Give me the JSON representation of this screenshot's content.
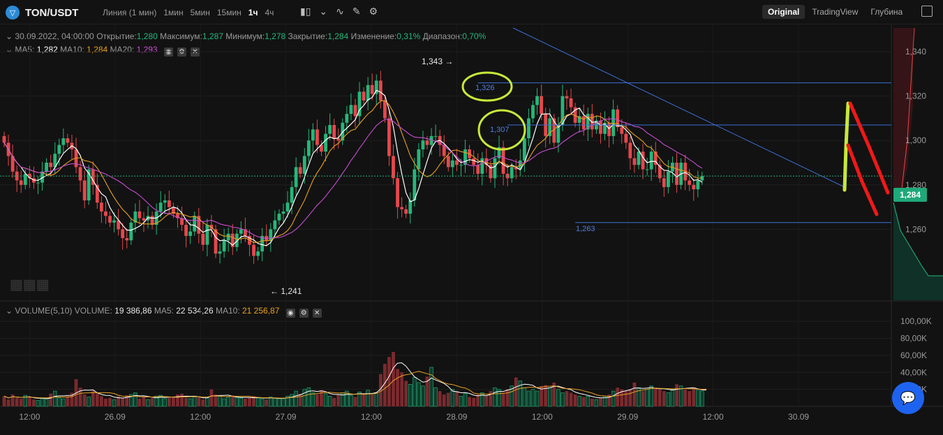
{
  "header": {
    "pair": "TON/USDT",
    "intervals": [
      "Линия (1 мин)",
      "1мин",
      "5мин",
      "15мин",
      "1ч",
      "4ч"
    ],
    "active_interval": "1ч",
    "views": [
      "Original",
      "TradingView",
      "Глубина"
    ],
    "active_view": "Original"
  },
  "ohlc": {
    "date": "30.09.2022, 04:00:00",
    "open_label": "Открытие:",
    "open": "1,280",
    "high_label": "Максимум:",
    "high": "1,287",
    "low_label": "Минимум:",
    "low": "1,278",
    "close_label": "Закрытие:",
    "close": "1,284",
    "change_label": "Изменение:",
    "change": "0,31%",
    "range_label": "Диапазон:",
    "range": "0,70%"
  },
  "ma": {
    "ma5_label": "MA5:",
    "ma5": "1,282",
    "ma10_label": "MA10:",
    "ma10": "1,284",
    "ma20_label": "MA20:",
    "ma20": "1,293"
  },
  "volume": {
    "label": "VOLUME(5,10)",
    "vol_label": "VOLUME:",
    "vol": "19 386,86",
    "ma5_label": "MA5:",
    "ma5": "22 534,26",
    "ma10_label": "MA10:",
    "ma10": "21 256,87"
  },
  "price_tag": "1,284",
  "colors": {
    "up": "#25b77a",
    "down": "#e5484d",
    "ma5": "#ffffff",
    "ma10": "#e8a021",
    "ma20": "#c84dd1",
    "hline": "#3b6fd6",
    "circle": "#c7e83a"
  },
  "chart_data": {
    "type": "candlestick",
    "price_axis_ticks": [
      "1,340",
      "1,320",
      "1,300",
      "1,280",
      "1,260"
    ],
    "volume_axis_ticks": [
      "100,00K",
      "80,00K",
      "60,00K",
      "40,00K",
      "20,00K"
    ],
    "x_ticks": [
      "12:00",
      "26.09",
      "12:00",
      "27.09",
      "12:00",
      "28.09",
      "12:00",
      "29.09",
      "12:00",
      "30.09"
    ],
    "ylim": [
      1.228,
      1.352
    ],
    "vol_ylim": [
      0,
      110000
    ],
    "annotations": {
      "high_label": "1,343",
      "low_label": "1,241",
      "level_1326": "1,326",
      "level_1307": "1,307",
      "level_1263": "1,263"
    },
    "hlines": [
      1.326,
      1.307,
      1.263
    ],
    "current_price": 1.284,
    "closes": [
      1.299,
      1.293,
      1.286,
      1.282,
      1.28,
      1.285,
      1.283,
      1.281,
      1.281,
      1.286,
      1.29,
      1.288,
      1.294,
      1.298,
      1.301,
      1.299,
      1.296,
      1.288,
      1.282,
      1.273,
      1.287,
      1.28,
      1.272,
      1.268,
      1.266,
      1.263,
      1.264,
      1.26,
      1.256,
      1.255,
      1.263,
      1.268,
      1.265,
      1.264,
      1.266,
      1.262,
      1.268,
      1.272,
      1.273,
      1.27,
      1.267,
      1.265,
      1.262,
      1.257,
      1.259,
      1.266,
      1.258,
      1.253,
      1.262,
      1.26,
      1.249,
      1.25,
      1.255,
      1.258,
      1.252,
      1.258,
      1.26,
      1.257,
      1.253,
      1.248,
      1.25,
      1.257,
      1.255,
      1.26,
      1.264,
      1.267,
      1.268,
      1.272,
      1.279,
      1.288,
      1.285,
      1.293,
      1.3,
      1.305,
      1.298,
      1.295,
      1.303,
      1.307,
      1.301,
      1.3,
      1.308,
      1.312,
      1.316,
      1.311,
      1.322,
      1.318,
      1.325,
      1.321,
      1.327,
      1.318,
      1.31,
      1.293,
      1.283,
      1.27,
      1.269,
      1.267,
      1.273,
      1.287,
      1.296,
      1.3,
      1.298,
      1.302,
      1.302,
      1.298,
      1.293,
      1.288,
      1.291,
      1.289,
      1.289,
      1.296,
      1.292,
      1.289,
      1.285,
      1.292,
      1.289,
      1.283,
      1.292,
      1.297,
      1.285,
      1.283,
      1.288,
      1.287,
      1.291,
      1.301,
      1.31,
      1.316,
      1.32,
      1.312,
      1.302,
      1.31,
      1.299,
      1.307,
      1.32,
      1.319,
      1.315,
      1.308,
      1.311,
      1.305,
      1.312,
      1.305,
      1.309,
      1.303,
      1.308,
      1.302,
      1.314,
      1.306,
      1.303,
      1.299,
      1.292,
      1.289,
      1.295,
      1.287,
      1.287,
      1.295,
      1.289,
      1.283,
      1.279,
      1.286,
      1.29,
      1.28,
      1.29,
      1.282,
      1.28,
      1.278,
      1.282,
      1.284
    ],
    "volumes": [
      12000,
      8000,
      14000,
      10000,
      9000,
      13000,
      11000,
      8000,
      7000,
      9000,
      10000,
      15000,
      18000,
      10000,
      9000,
      12000,
      16000,
      32000,
      22000,
      14000,
      11000,
      18000,
      15000,
      12000,
      9000,
      10000,
      8000,
      12000,
      10000,
      13000,
      14000,
      16000,
      9000,
      11000,
      8000,
      10000,
      12000,
      13000,
      9000,
      10000,
      11000,
      14000,
      15000,
      10000,
      9000,
      12000,
      11000,
      8000,
      10000,
      20000,
      14000,
      12000,
      9000,
      11000,
      13000,
      10000,
      10000,
      9000,
      10000,
      12000,
      10000,
      9000,
      8000,
      11000,
      10000,
      9000,
      9000,
      12000,
      14000,
      18000,
      15000,
      20000,
      22000,
      16000,
      14000,
      19000,
      15000,
      12000,
      10000,
      14000,
      16000,
      18000,
      13000,
      11000,
      17000,
      15000,
      19000,
      14000,
      16000,
      38000,
      50000,
      58000,
      64000,
      44000,
      40000,
      30000,
      26000,
      34000,
      28000,
      24000,
      35000,
      46000,
      22000,
      18000,
      14000,
      16000,
      20000,
      18000,
      12000,
      15000,
      11000,
      10000,
      14000,
      16000,
      12000,
      18000,
      22000,
      20000,
      16000,
      20000,
      24000,
      34000,
      30000,
      22000,
      18000,
      20000,
      18000,
      24000,
      25000,
      22000,
      28000,
      20000,
      16000,
      18000,
      16000,
      14000,
      12000,
      11000,
      12000,
      9000,
      8000,
      10000,
      12000,
      14000,
      18000,
      22000,
      20000,
      18000,
      20000,
      28000,
      22000,
      18000,
      20000,
      24000,
      22000,
      20000,
      18000,
      16000,
      20000,
      26000,
      24000,
      20000,
      18000,
      22000,
      19000,
      18000,
      19386
    ]
  }
}
